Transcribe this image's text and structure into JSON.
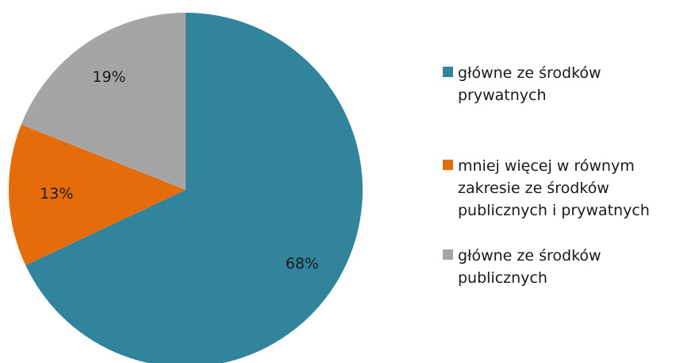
{
  "chart_data": {
    "type": "pie",
    "title": "",
    "legend_position": "right",
    "series": [
      {
        "name": "",
        "slices": [
          {
            "label": "główne ze środków\nprywatnych",
            "value": 68,
            "display": "68%",
            "color": "#31849b"
          },
          {
            "label": "mniej więcej w równym\nzakresie ze środków\npublicznych i prywatnych",
            "value": 13,
            "display": "13%",
            "color": "#e46c0a"
          },
          {
            "label": "główne ze środków\npublicznych",
            "value": 19,
            "display": "19%",
            "color": "#a5a5a5"
          }
        ]
      }
    ],
    "start_angle": "12 o'clock",
    "direction": "clockwise"
  }
}
